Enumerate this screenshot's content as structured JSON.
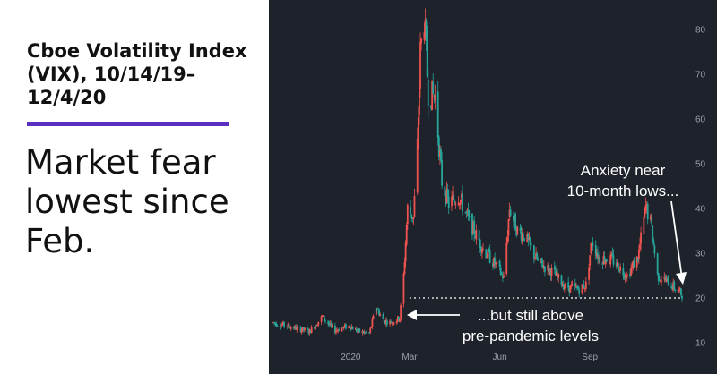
{
  "title": "Cboe Volatility Index (VIX), 10/14/19–12/4/20",
  "headline": "Market fear lowest since Feb.",
  "colors": {
    "background": "#1e222b",
    "up_candle": "#26a69a",
    "down_candle": "#ef5350",
    "accent_rule": "#5a2fc2",
    "annotation": "#ffffff",
    "axis_text": "#9aa0a8"
  },
  "chart_data": {
    "type": "candlestick",
    "title": "Cboe Volatility Index (VIX), 10/14/19–12/4/20",
    "x_tick_labels": [
      "2020",
      "Mar",
      "Jun",
      "Sep"
    ],
    "y_ticks": [
      10,
      20,
      30,
      40,
      50,
      60,
      70,
      80
    ],
    "y_axis_position": "right",
    "ylim": [
      5,
      85
    ],
    "grid": false,
    "x_range": [
      "2019-10-14",
      "2020-12-04"
    ],
    "reference_line": {
      "value": 20,
      "style": "dotted",
      "from": "2020-03-01",
      "to": "2020-12-04"
    },
    "annotations": [
      {
        "text_lines": [
          "Anxiety near",
          "10-month lows..."
        ],
        "arrow_target": "2020-12-01"
      },
      {
        "text_lines": [
          "...but still above",
          "pre-pandemic levels"
        ],
        "arrow_target": "2020-02-20"
      }
    ],
    "anchors": [
      [
        "2019-10-14",
        14.5
      ],
      [
        "2019-11-01",
        13.5
      ],
      [
        "2019-11-20",
        12.5
      ],
      [
        "2019-12-03",
        15.8
      ],
      [
        "2019-12-15",
        12.7
      ],
      [
        "2019-12-31",
        13.8
      ],
      [
        "2020-01-08",
        12.5
      ],
      [
        "2020-01-20",
        12.1
      ],
      [
        "2020-01-27",
        18.0
      ],
      [
        "2020-02-03",
        15.0
      ],
      [
        "2020-02-10",
        14.5
      ],
      [
        "2020-02-20",
        15.5
      ],
      [
        "2020-02-24",
        25.0
      ],
      [
        "2020-02-28",
        40.0
      ],
      [
        "2020-03-05",
        38.0
      ],
      [
        "2020-03-09",
        54.0
      ],
      [
        "2020-03-12",
        75.0
      ],
      [
        "2020-03-16",
        82.7
      ],
      [
        "2020-03-20",
        66.0
      ],
      [
        "2020-03-27",
        65.0
      ],
      [
        "2020-04-03",
        46.0
      ],
      [
        "2020-04-10",
        41.0
      ],
      [
        "2020-04-20",
        43.0
      ],
      [
        "2020-05-01",
        37.0
      ],
      [
        "2020-05-15",
        31.0
      ],
      [
        "2020-05-29",
        27.0
      ],
      [
        "2020-06-05",
        24.5
      ],
      [
        "2020-06-11",
        40.0
      ],
      [
        "2020-06-19",
        35.0
      ],
      [
        "2020-06-26",
        34.0
      ],
      [
        "2020-07-10",
        28.0
      ],
      [
        "2020-07-24",
        26.0
      ],
      [
        "2020-08-07",
        22.5
      ],
      [
        "2020-08-21",
        22.0
      ],
      [
        "2020-08-28",
        23.0
      ],
      [
        "2020-09-03",
        33.0
      ],
      [
        "2020-09-10",
        29.0
      ],
      [
        "2020-09-24",
        28.5
      ],
      [
        "2020-10-09",
        25.0
      ],
      [
        "2020-10-20",
        29.0
      ],
      [
        "2020-10-28",
        40.3
      ],
      [
        "2020-11-02",
        37.0
      ],
      [
        "2020-11-09",
        25.0
      ],
      [
        "2020-11-20",
        23.5
      ],
      [
        "2020-12-04",
        20.8
      ]
    ]
  }
}
